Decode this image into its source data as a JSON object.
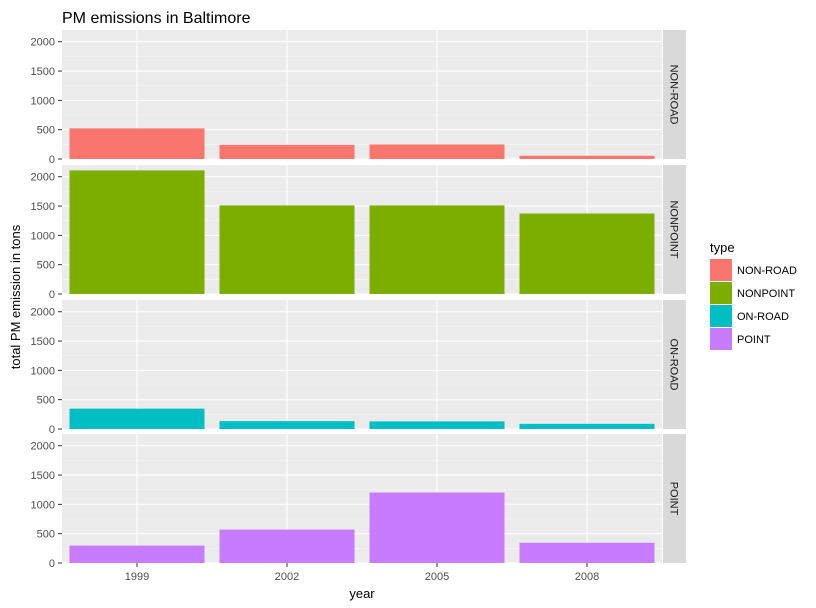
{
  "chart_data": {
    "type": "bar",
    "title": "PM emissions in Baltimore",
    "xlabel": "year",
    "ylabel": "total PM emission in tons",
    "categories": [
      "1999",
      "2002",
      "2005",
      "2008"
    ],
    "ylim": [
      0,
      2200
    ],
    "yticks": [
      0,
      500,
      1000,
      1500,
      2000
    ],
    "facet_by": "type",
    "grid": true,
    "legend": {
      "title": "type",
      "position": "right"
    },
    "series": [
      {
        "name": "NON-ROAD",
        "color": "#F8766D",
        "values": [
          522,
          241,
          248,
          55
        ]
      },
      {
        "name": "NONPOINT",
        "color": "#7CAE00",
        "values": [
          2108,
          1510,
          1510,
          1373
        ]
      },
      {
        "name": "ON-ROAD",
        "color": "#00BFC4",
        "values": [
          347,
          134,
          130,
          88
        ]
      },
      {
        "name": "POINT",
        "color": "#C77CFF",
        "values": [
          297,
          570,
          1202,
          345
        ]
      }
    ]
  }
}
